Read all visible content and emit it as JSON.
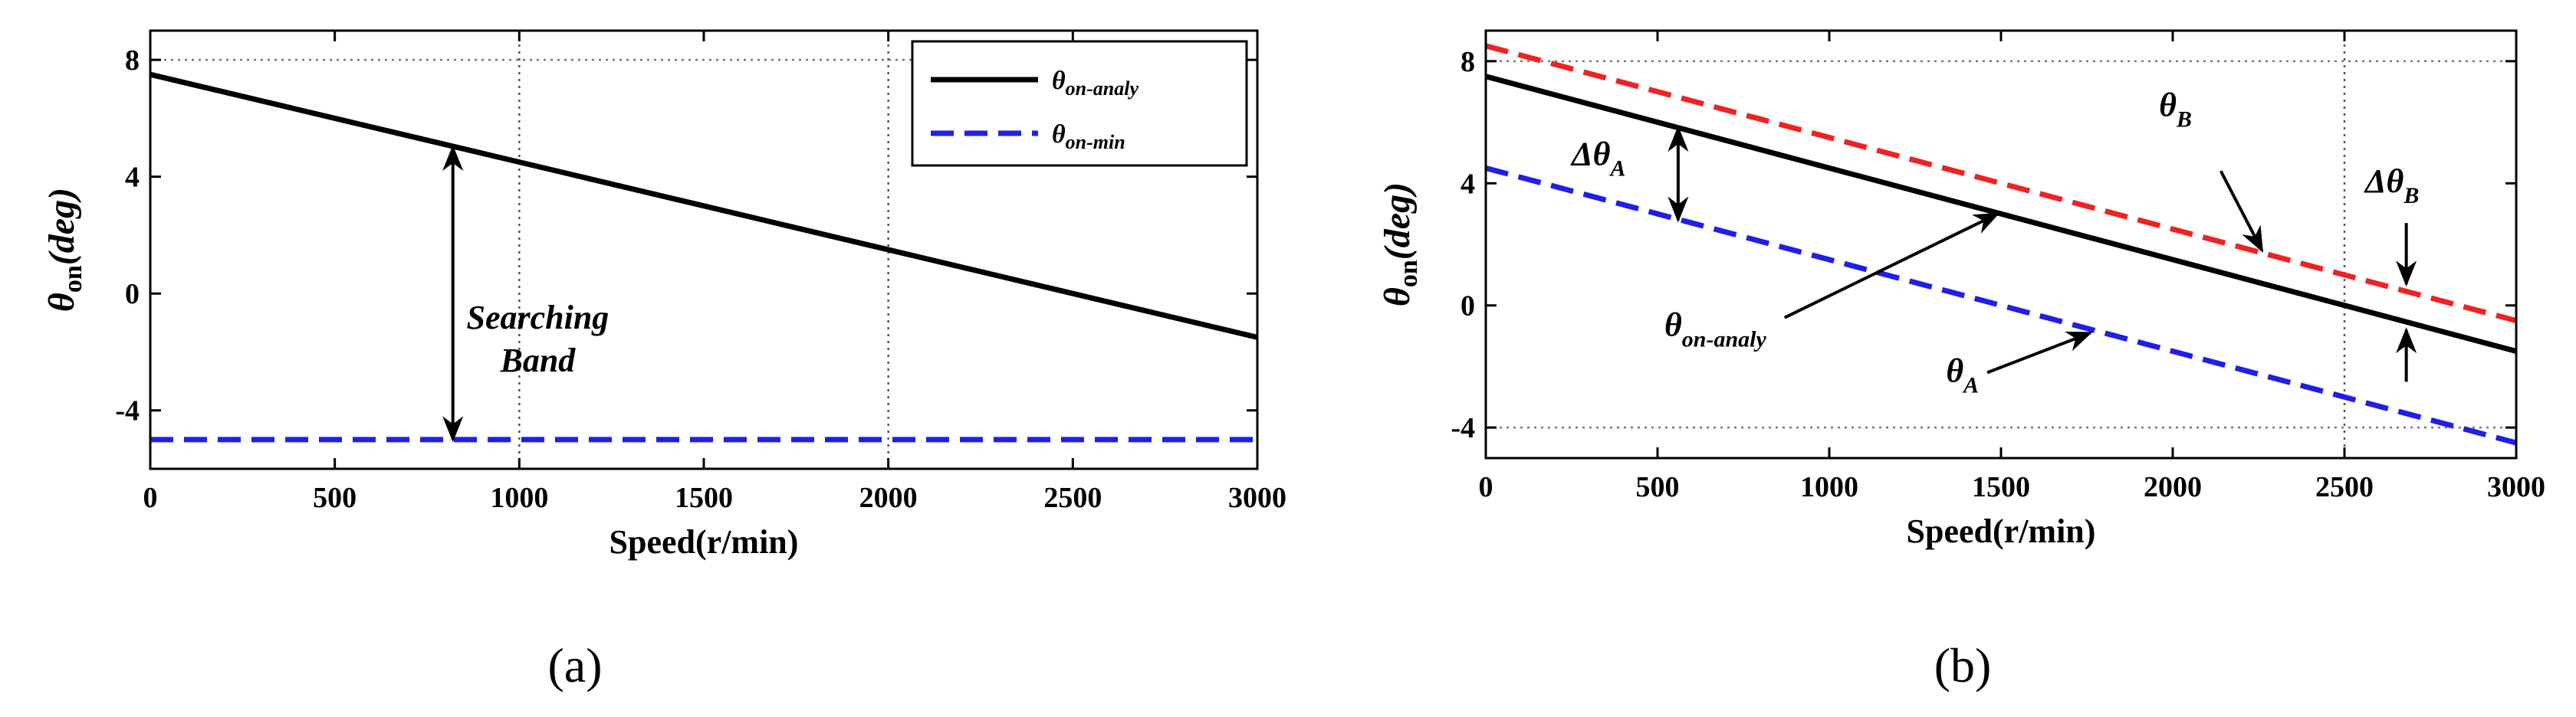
{
  "chart_data": [
    {
      "panel_label": "(a)",
      "type": "line",
      "xlabel": "Speed(r/min)",
      "ylabel": {
        "main": "θ",
        "sub": "on",
        "unit": "(deg)"
      },
      "xlim": [
        0,
        3000
      ],
      "ylim": [
        -6,
        9
      ],
      "xticks": [
        0,
        500,
        1000,
        1500,
        2000,
        2500,
        3000
      ],
      "yticks": [
        -4,
        0,
        4,
        8
      ],
      "gridlines": {
        "x": [
          1000,
          2000
        ],
        "y": [
          8
        ]
      },
      "series": [
        {
          "name": "on-analy",
          "label_main": "θ",
          "label_sub": "on-analy",
          "style": "solid",
          "color": "#000000",
          "x": [
            0,
            3000
          ],
          "y": [
            7.5,
            -1.5
          ]
        },
        {
          "name": "on-min",
          "label_main": "θ",
          "label_sub": "on-min",
          "style": "dashed",
          "color": "#1f1fe6",
          "x": [
            0,
            3000
          ],
          "y": [
            -5,
            -5
          ]
        }
      ],
      "legend": {
        "placement": "top-right"
      },
      "annotations": [
        {
          "type": "double-arrow",
          "from": [
            820,
            5.0
          ],
          "to": [
            820,
            -5.0
          ]
        },
        {
          "type": "text",
          "lines": [
            "Searching",
            "Band"
          ],
          "at": [
            1050,
            -1.2
          ]
        }
      ]
    },
    {
      "panel_label": "(b)",
      "type": "line",
      "xlabel": "Speed(r/min)",
      "ylabel": {
        "main": "θ",
        "sub": "on",
        "unit": "(deg)"
      },
      "xlim": [
        0,
        3000
      ],
      "ylim": [
        -5,
        9
      ],
      "xticks": [
        0,
        500,
        1000,
        1500,
        2000,
        2500,
        3000
      ],
      "yticks": [
        -4,
        0,
        4,
        8
      ],
      "gridlines": {
        "x": [
          2500
        ],
        "y": [
          -4,
          8
        ]
      },
      "series": [
        {
          "name": "on-analy",
          "style": "solid",
          "color": "#000000",
          "x": [
            0,
            3000
          ],
          "y": [
            7.5,
            -1.5
          ]
        },
        {
          "name": "B",
          "style": "dashed",
          "color": "#ee2222",
          "x": [
            0,
            3000
          ],
          "y": [
            8.5,
            -0.5
          ]
        },
        {
          "name": "A",
          "style": "dashed",
          "color": "#1f1fe6",
          "x": [
            0,
            3000
          ],
          "y": [
            4.5,
            -4.5
          ]
        }
      ],
      "annotations": [
        {
          "type": "double-arrow",
          "from": [
            560,
            5.8
          ],
          "to": [
            560,
            2.8
          ]
        },
        {
          "type": "text",
          "main": "Δθ",
          "sub": "A",
          "at": [
            250,
            4.6
          ]
        },
        {
          "type": "arrow",
          "from": [
            870,
            -0.4
          ],
          "to": [
            1490,
            3.0
          ]
        },
        {
          "type": "text",
          "main": "θ",
          "sub": "on-analy",
          "at": [
            520,
            -1.0
          ]
        },
        {
          "type": "arrow",
          "from": [
            1460,
            -2.2
          ],
          "to": [
            1760,
            -0.9
          ]
        },
        {
          "type": "text",
          "main": "θ",
          "sub": "A",
          "at": [
            1340,
            -2.5
          ]
        },
        {
          "type": "arrow",
          "from": [
            2140,
            4.4
          ],
          "to": [
            2260,
            1.8
          ]
        },
        {
          "type": "text",
          "main": "θ",
          "sub": "B",
          "at": [
            1960,
            6.2
          ]
        },
        {
          "type": "arrow-down",
          "from": [
            2680,
            2.7
          ],
          "to": [
            2680,
            0.7
          ]
        },
        {
          "type": "arrow-up",
          "from": [
            2680,
            -2.5
          ],
          "to": [
            2680,
            -0.8
          ]
        },
        {
          "type": "text",
          "main": "Δθ",
          "sub": "B",
          "at": [
            2560,
            3.7
          ]
        }
      ]
    }
  ]
}
